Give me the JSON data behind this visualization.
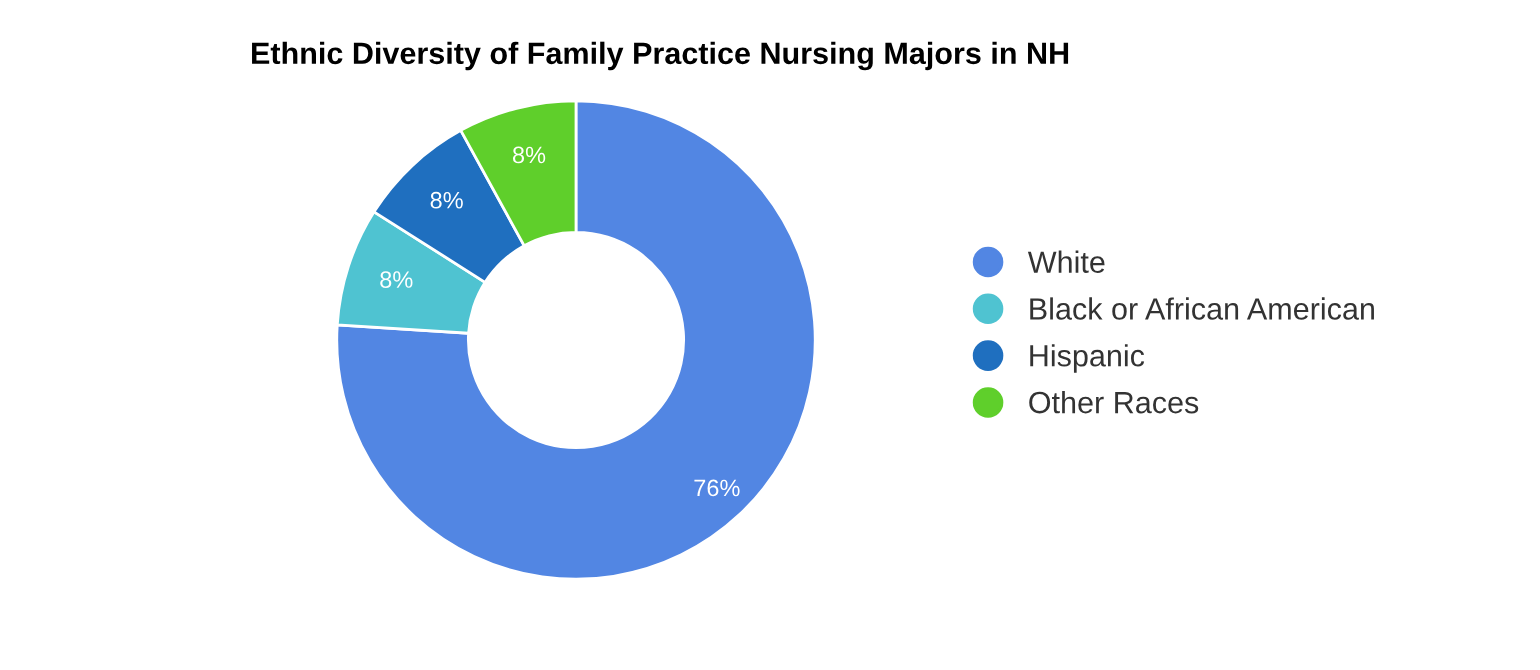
{
  "chart_data": {
    "type": "donut",
    "title": "Ethnic Diversity of Family Practice Nursing Majors in NH",
    "categories": [
      "White",
      "Black or African American",
      "Hispanic",
      "Other Races"
    ],
    "values": [
      76,
      8,
      8,
      8
    ],
    "colors": [
      "#5286e3",
      "#4fc3d1",
      "#1f6fbf",
      "#5fcf2b"
    ],
    "value_labels": [
      "76%",
      "8%",
      "8%",
      "8%"
    ],
    "legend": "right"
  }
}
